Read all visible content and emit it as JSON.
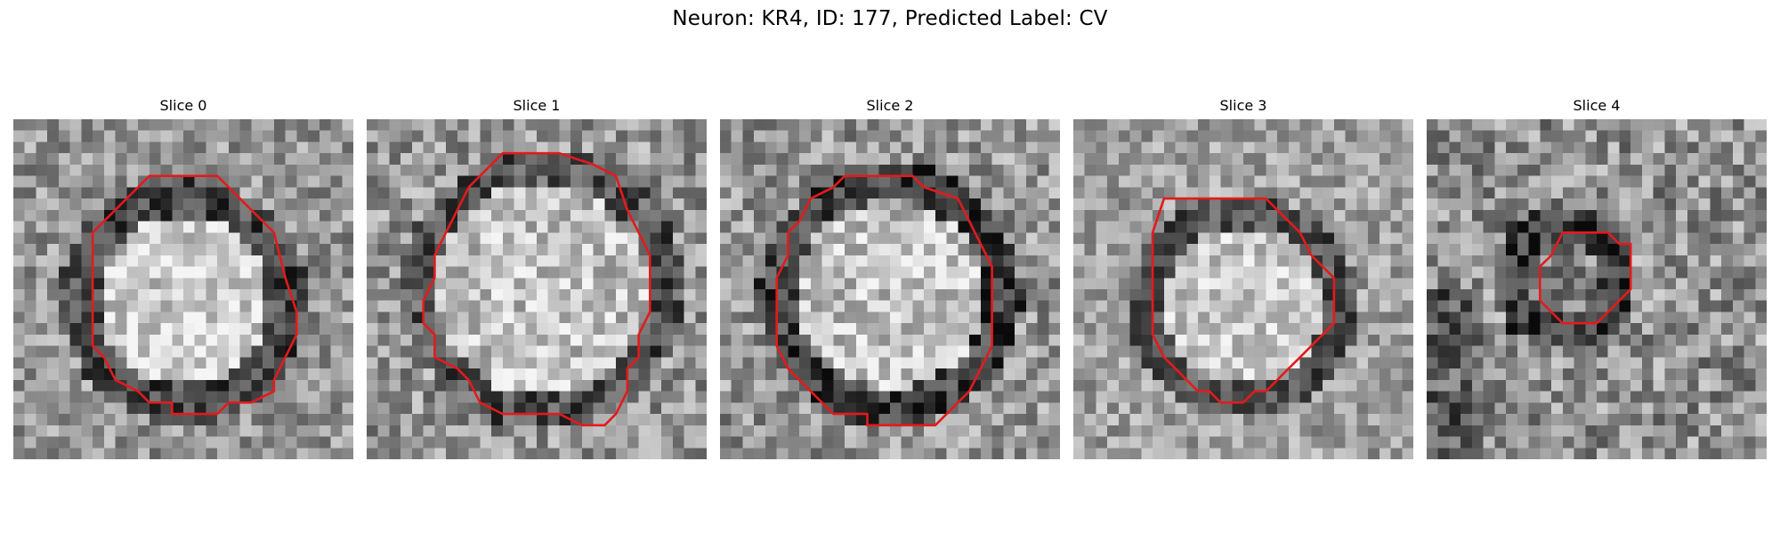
{
  "figure": {
    "title": "Neuron: KR4, ID: 177, Predicted Label: CV"
  },
  "panels": [
    {
      "title": "Slice 0"
    },
    {
      "title": "Slice 1"
    },
    {
      "title": "Slice 2"
    },
    {
      "title": "Slice 3"
    },
    {
      "title": "Slice 4"
    }
  ],
  "colors": {
    "contour": "#e41a1c",
    "background": "#ffffff"
  }
}
